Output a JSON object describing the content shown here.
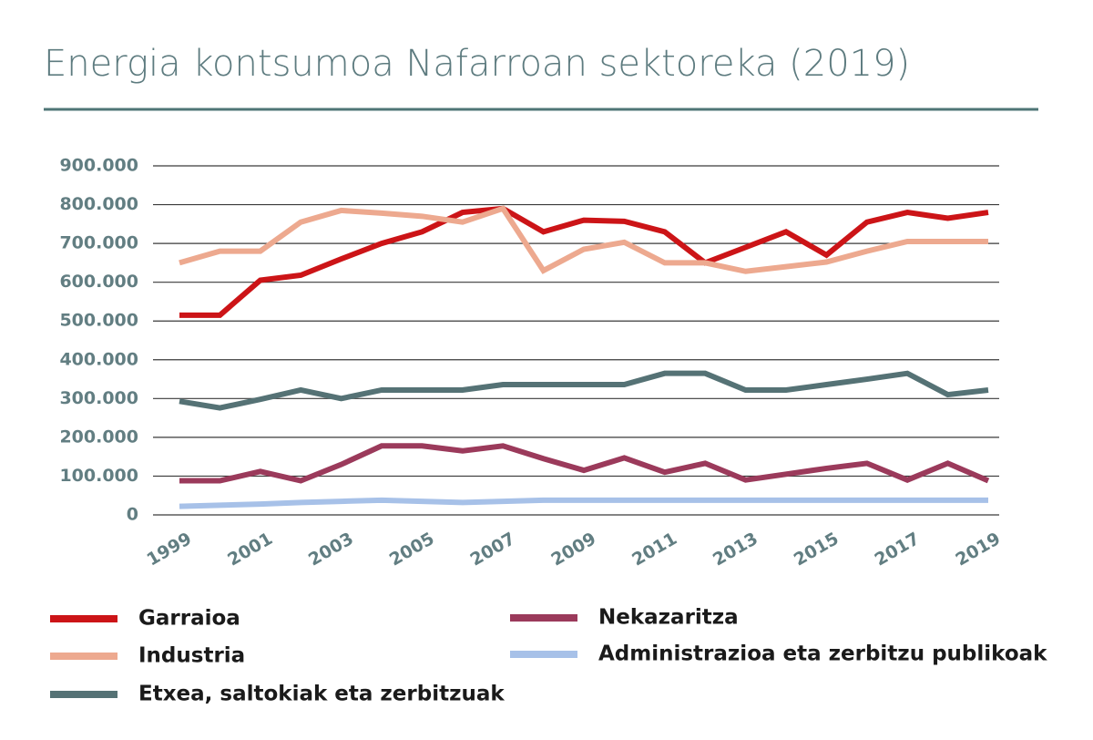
{
  "chart_data": {
    "type": "line",
    "title": "Energia kontsumoa Nafarroan sektoreka (2019)",
    "x": [
      1999,
      2000,
      2001,
      2002,
      2003,
      2004,
      2005,
      2006,
      2007,
      2008,
      2009,
      2010,
      2011,
      2012,
      2013,
      2014,
      2015,
      2016,
      2017,
      2018,
      2019
    ],
    "xlim": [
      1999,
      2019
    ],
    "xticks": [
      1999,
      2001,
      2003,
      2005,
      2007,
      2009,
      2011,
      2013,
      2015,
      2017,
      2019
    ],
    "ylim": [
      0,
      900000
    ],
    "yticks": [
      0,
      {
        "value": 100000,
        "label": "100.000"
      },
      {
        "value": 200000,
        "label": "200.000"
      },
      {
        "value": 300000,
        "label": "300.000"
      },
      {
        "value": 400000,
        "label": "400.000"
      },
      {
        "value": 500000,
        "label": "500.000"
      },
      {
        "value": 600000,
        "label": "600.000"
      },
      {
        "value": 700000,
        "label": "700.000"
      },
      {
        "value": 800000,
        "label": "800.000"
      },
      {
        "value": 900000,
        "label": "900.000"
      }
    ],
    "grid": true,
    "series": [
      {
        "name": "Garraioa",
        "color": "#cc1417",
        "values": [
          515000,
          515000,
          605000,
          618000,
          660000,
          700000,
          730000,
          780000,
          790000,
          730000,
          760000,
          757000,
          730000,
          650000,
          690000,
          730000,
          670000,
          755000,
          780000,
          765000,
          780000
        ]
      },
      {
        "name": "Industria",
        "color": "#eda98f",
        "values": [
          650000,
          680000,
          680000,
          755000,
          785000,
          778000,
          770000,
          755000,
          790000,
          630000,
          685000,
          703000,
          650000,
          650000,
          628000,
          640000,
          652000,
          680000,
          705000,
          705000,
          705000
        ]
      },
      {
        "name": "Etxea, saltokiak eta zerbitzuak",
        "color": "#557275",
        "values": [
          293000,
          276000,
          298000,
          322000,
          300000,
          322000,
          322000,
          322000,
          336000,
          336000,
          336000,
          336000,
          365000,
          365000,
          322000,
          322000,
          336000,
          350000,
          365000,
          310000,
          322000
        ]
      },
      {
        "name": "Nekazaritza",
        "color": "#9b3a5b",
        "values": [
          88000,
          88000,
          112000,
          88000,
          130000,
          178000,
          178000,
          165000,
          178000,
          145000,
          115000,
          147000,
          110000,
          133000,
          90000,
          105000,
          120000,
          133000,
          90000,
          133000,
          88000
        ]
      },
      {
        "name": "Administrazioa eta zerbitzu publikoak",
        "color": "#a7c1e8",
        "values": [
          22000,
          25000,
          28000,
          32000,
          35000,
          38000,
          35000,
          32000,
          35000,
          38000,
          38000,
          38000,
          38000,
          38000,
          38000,
          38000,
          38000,
          38000,
          38000,
          38000,
          38000
        ]
      }
    ]
  }
}
